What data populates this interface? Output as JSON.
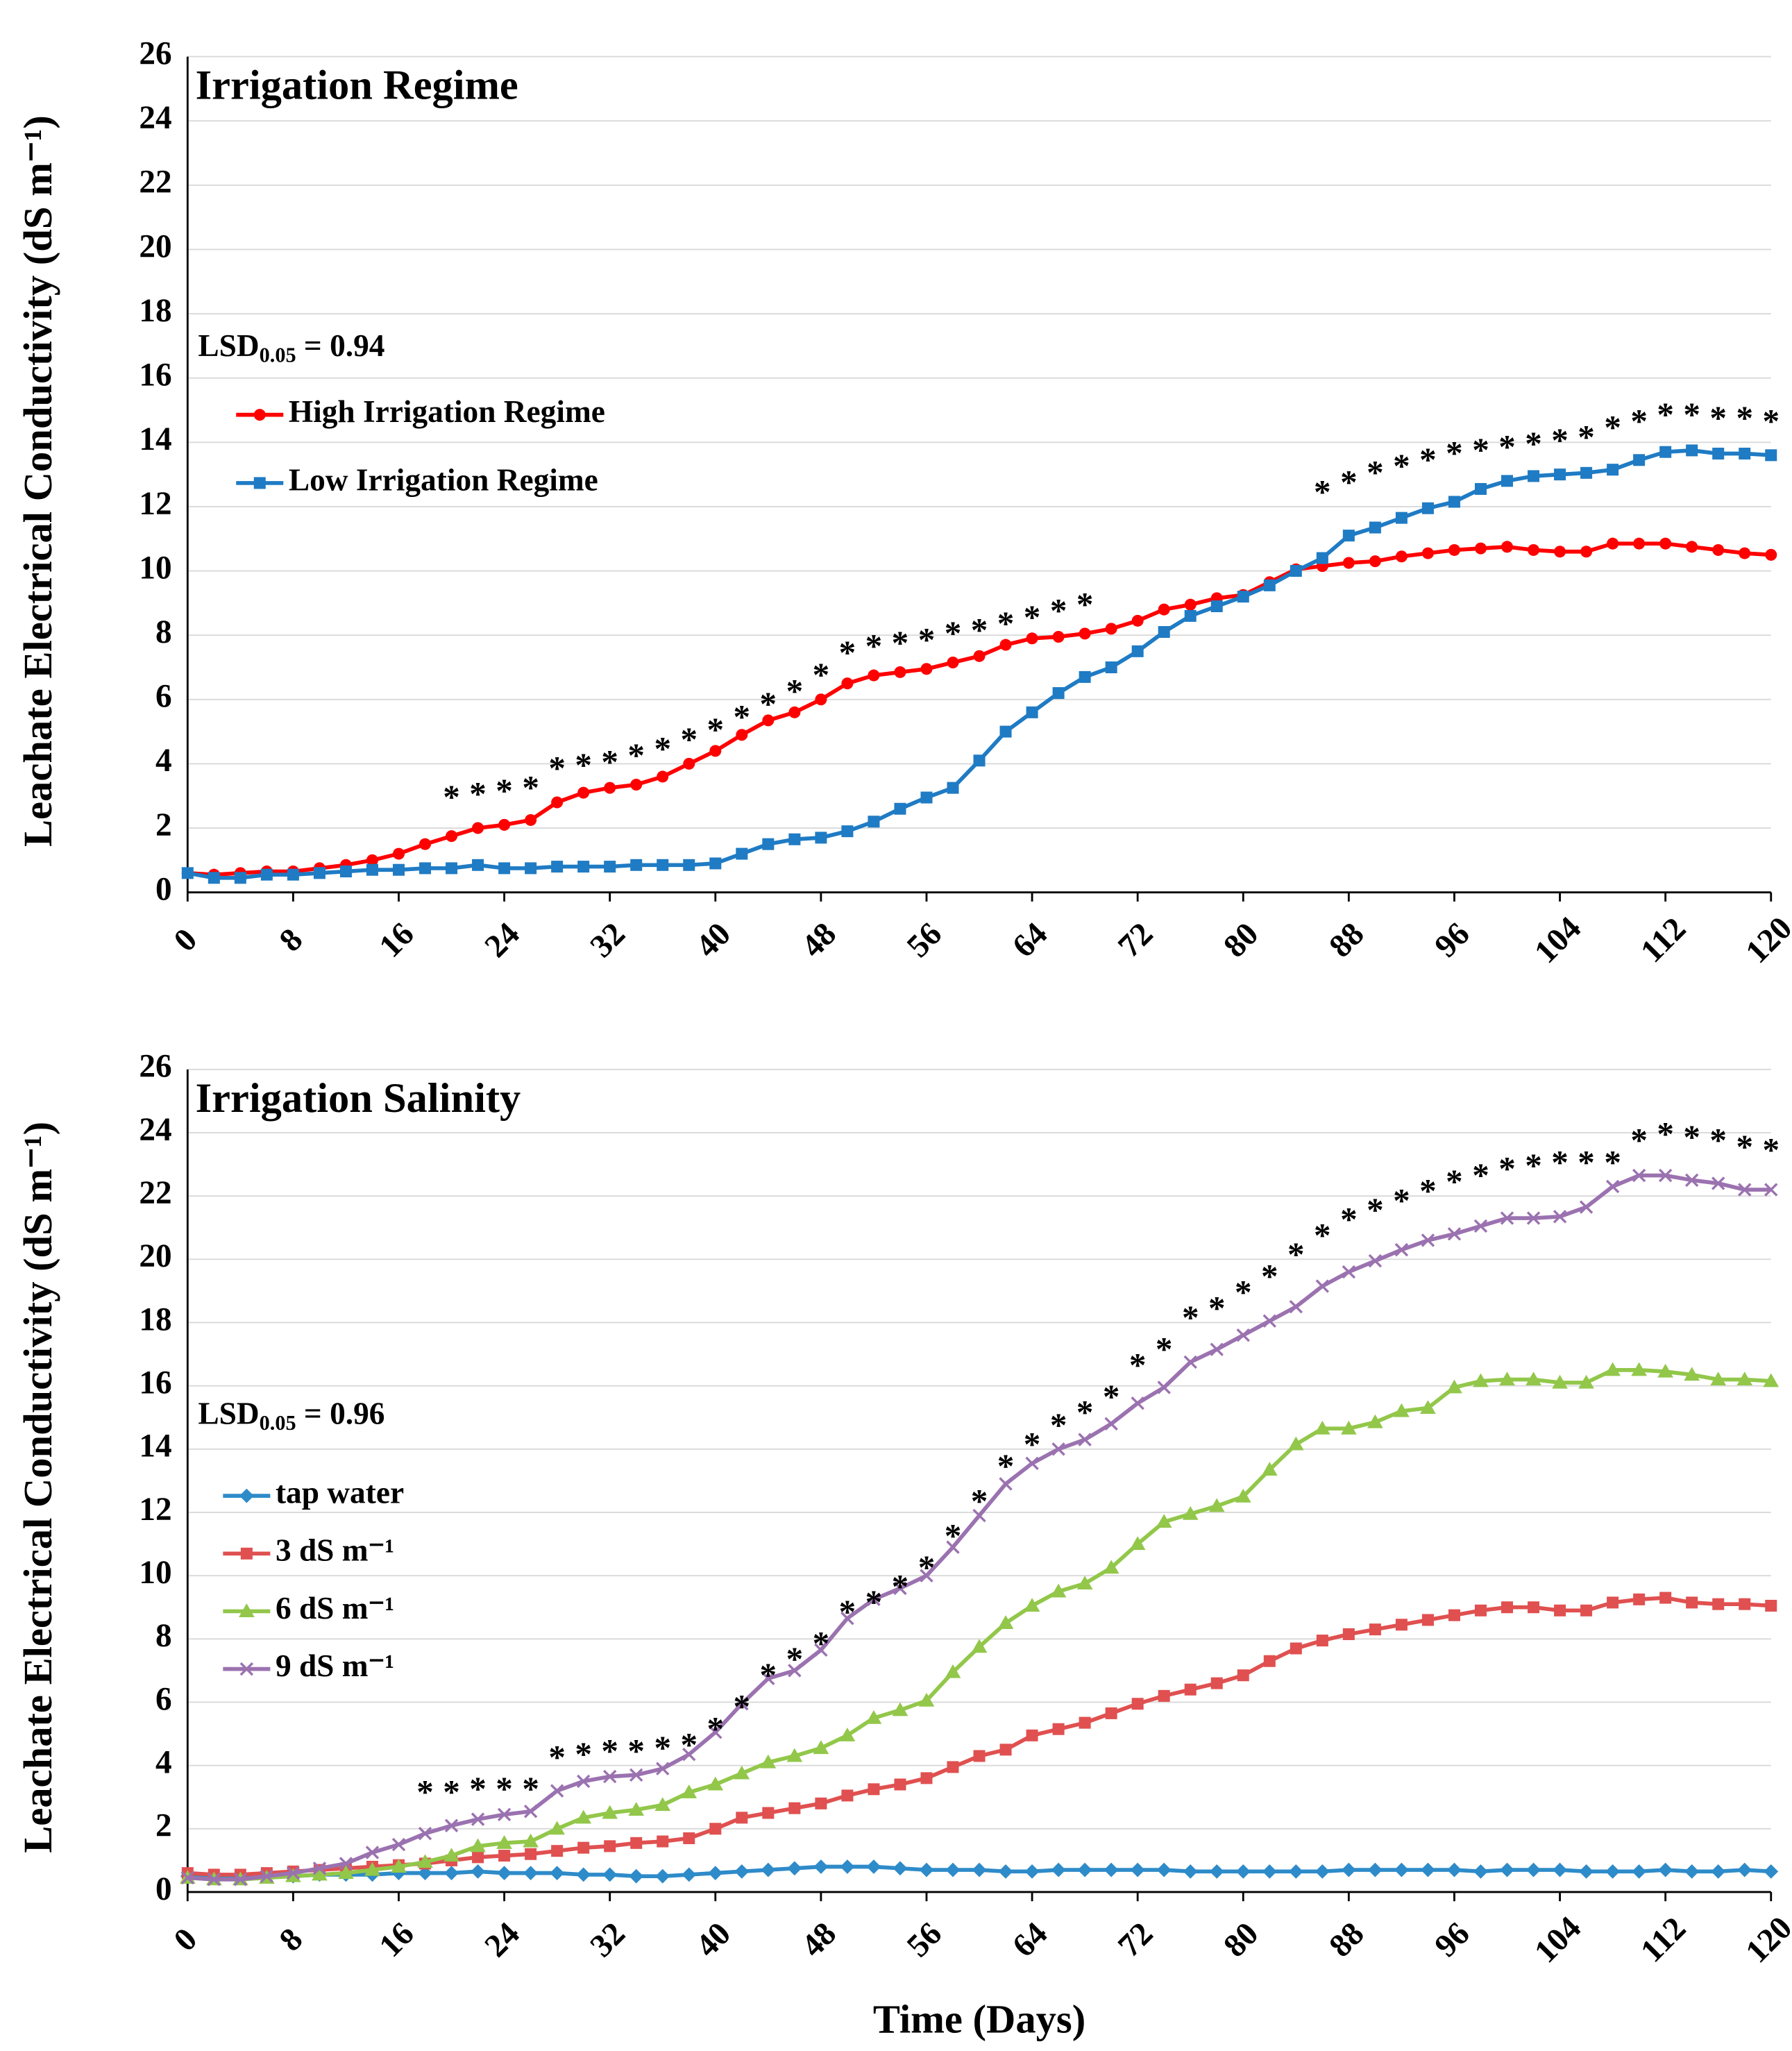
{
  "chart_data": [
    {
      "type": "line",
      "title": "Irrigation Regime",
      "y_label": "Leachate Electrical Conductivity (dS m⁻¹)",
      "annotation": {
        "text": "LSD",
        "subscript": "0.05",
        "rest": " = 0.94"
      },
      "x": [
        0,
        2,
        4,
        6,
        8,
        10,
        12,
        14,
        16,
        18,
        20,
        22,
        24,
        26,
        28,
        30,
        32,
        34,
        36,
        38,
        40,
        42,
        44,
        46,
        48,
        50,
        52,
        54,
        56,
        58,
        60,
        62,
        64,
        66,
        68,
        70,
        72,
        74,
        76,
        78,
        80,
        82,
        84,
        86,
        88,
        90,
        92,
        94,
        96,
        98,
        100,
        102,
        104,
        106,
        108,
        110,
        112,
        114,
        116,
        118,
        120
      ],
      "xlim": [
        0,
        120
      ],
      "xticks": [
        0,
        8,
        16,
        24,
        32,
        40,
        48,
        56,
        64,
        72,
        80,
        88,
        96,
        104,
        112,
        120
      ],
      "ylim": [
        0,
        26
      ],
      "yticks": [
        0,
        2,
        4,
        6,
        8,
        10,
        12,
        14,
        16,
        18,
        20,
        22,
        24,
        26
      ],
      "grid": true,
      "series": [
        {
          "name": "High Irrigation Regime",
          "color": "#ff0000",
          "marker": "circle",
          "values": [
            0.6,
            0.55,
            0.6,
            0.65,
            0.65,
            0.75,
            0.85,
            1.0,
            1.2,
            1.5,
            1.75,
            2.0,
            2.1,
            2.25,
            2.8,
            3.1,
            3.25,
            3.35,
            3.6,
            4.0,
            4.4,
            4.9,
            5.35,
            5.6,
            6.0,
            6.5,
            6.75,
            6.85,
            6.95,
            7.15,
            7.35,
            7.7,
            7.9,
            7.95,
            8.05,
            8.2,
            8.45,
            8.8,
            8.95,
            9.15,
            9.25,
            9.65,
            10.05,
            10.15,
            10.25,
            10.3,
            10.45,
            10.55,
            10.65,
            10.7,
            10.75,
            10.65,
            10.6,
            10.6,
            10.85,
            10.85,
            10.85,
            10.75,
            10.65,
            10.55,
            10.5
          ]
        },
        {
          "name": "Low Irrigation Regime",
          "color": "#1f7bc4",
          "marker": "square",
          "values": [
            0.6,
            0.45,
            0.45,
            0.55,
            0.55,
            0.6,
            0.65,
            0.7,
            0.7,
            0.75,
            0.75,
            0.85,
            0.75,
            0.75,
            0.8,
            0.8,
            0.8,
            0.85,
            0.85,
            0.85,
            0.9,
            1.2,
            1.5,
            1.65,
            1.7,
            1.9,
            2.2,
            2.6,
            2.95,
            3.25,
            4.1,
            5.0,
            5.6,
            6.2,
            6.7,
            7.0,
            7.5,
            8.1,
            8.6,
            8.9,
            9.2,
            9.55,
            10.0,
            10.4,
            11.1,
            11.35,
            11.65,
            11.95,
            12.15,
            12.55,
            12.8,
            12.95,
            13.0,
            13.05,
            13.15,
            13.45,
            13.7,
            13.75,
            13.65,
            13.65,
            13.6
          ]
        }
      ],
      "significance": {
        "label": "*",
        "x": [
          20,
          22,
          24,
          26,
          28,
          30,
          32,
          34,
          36,
          38,
          40,
          42,
          44,
          46,
          48,
          50,
          52,
          54,
          56,
          58,
          60,
          62,
          64,
          66,
          68,
          86,
          88,
          90,
          92,
          94,
          96,
          98,
          100,
          102,
          104,
          106,
          108,
          110,
          112,
          114,
          116,
          118,
          120
        ],
        "y": [
          3.1,
          3.2,
          3.3,
          3.4,
          4.0,
          4.1,
          4.2,
          4.4,
          4.6,
          4.9,
          5.2,
          5.6,
          6.0,
          6.4,
          6.9,
          7.6,
          7.8,
          7.9,
          8.0,
          8.2,
          8.3,
          8.5,
          8.7,
          8.9,
          9.1,
          12.6,
          12.9,
          13.2,
          13.4,
          13.6,
          13.8,
          13.9,
          14.0,
          14.1,
          14.2,
          14.3,
          14.6,
          14.8,
          15.0,
          15.0,
          14.9,
          14.9,
          14.8
        ]
      }
    },
    {
      "type": "line",
      "title": "Irrigation Salinity",
      "y_label": "Leachate Electrical Conductivity (dS m⁻¹)",
      "x_label": "Time (Days)",
      "annotation": {
        "text": "LSD",
        "subscript": "0.05",
        "rest": " = 0.96"
      },
      "x": [
        0,
        2,
        4,
        6,
        8,
        10,
        12,
        14,
        16,
        18,
        20,
        22,
        24,
        26,
        28,
        30,
        32,
        34,
        36,
        38,
        40,
        42,
        44,
        46,
        48,
        50,
        52,
        54,
        56,
        58,
        60,
        62,
        64,
        66,
        68,
        70,
        72,
        74,
        76,
        78,
        80,
        82,
        84,
        86,
        88,
        90,
        92,
        94,
        96,
        98,
        100,
        102,
        104,
        106,
        108,
        110,
        112,
        114,
        116,
        118,
        120
      ],
      "xlim": [
        0,
        120
      ],
      "xticks": [
        0,
        8,
        16,
        24,
        32,
        40,
        48,
        56,
        64,
        72,
        80,
        88,
        96,
        104,
        112,
        120
      ],
      "ylim": [
        0,
        26
      ],
      "yticks": [
        0,
        2,
        4,
        6,
        8,
        10,
        12,
        14,
        16,
        18,
        20,
        22,
        24,
        26
      ],
      "grid": true,
      "series": [
        {
          "name": "tap water",
          "color": "#2e8bc9",
          "marker": "diamond",
          "values": [
            0.5,
            0.45,
            0.45,
            0.5,
            0.5,
            0.55,
            0.55,
            0.55,
            0.6,
            0.6,
            0.6,
            0.65,
            0.6,
            0.6,
            0.6,
            0.55,
            0.55,
            0.5,
            0.5,
            0.55,
            0.6,
            0.65,
            0.7,
            0.75,
            0.8,
            0.8,
            0.8,
            0.75,
            0.7,
            0.7,
            0.7,
            0.65,
            0.65,
            0.7,
            0.7,
            0.7,
            0.7,
            0.7,
            0.65,
            0.65,
            0.65,
            0.65,
            0.65,
            0.65,
            0.7,
            0.7,
            0.7,
            0.7,
            0.7,
            0.65,
            0.7,
            0.7,
            0.7,
            0.65,
            0.65,
            0.65,
            0.7,
            0.65,
            0.65,
            0.7,
            0.65
          ]
        },
        {
          "name": "3 dS m⁻¹",
          "color": "#e05050",
          "marker": "square",
          "values": [
            0.6,
            0.55,
            0.55,
            0.6,
            0.65,
            0.7,
            0.75,
            0.8,
            0.85,
            0.9,
            1.0,
            1.1,
            1.15,
            1.2,
            1.3,
            1.4,
            1.45,
            1.55,
            1.6,
            1.7,
            2.0,
            2.35,
            2.5,
            2.65,
            2.8,
            3.05,
            3.25,
            3.4,
            3.6,
            3.95,
            4.3,
            4.5,
            4.95,
            5.15,
            5.35,
            5.65,
            5.95,
            6.2,
            6.4,
            6.6,
            6.85,
            7.3,
            7.7,
            7.95,
            8.15,
            8.3,
            8.45,
            8.6,
            8.75,
            8.9,
            9.0,
            9.0,
            8.9,
            8.9,
            9.15,
            9.25,
            9.3,
            9.15,
            9.1,
            9.1,
            9.05
          ]
        },
        {
          "name": "6 dS m⁻¹",
          "color": "#92c74a",
          "marker": "triangle",
          "values": [
            0.45,
            0.4,
            0.4,
            0.45,
            0.5,
            0.55,
            0.6,
            0.7,
            0.8,
            0.95,
            1.15,
            1.45,
            1.55,
            1.6,
            2.0,
            2.35,
            2.5,
            2.6,
            2.75,
            3.15,
            3.4,
            3.75,
            4.1,
            4.3,
            4.55,
            4.95,
            5.5,
            5.75,
            6.05,
            6.95,
            7.75,
            8.5,
            9.05,
            9.5,
            9.75,
            10.25,
            11.0,
            11.7,
            11.95,
            12.2,
            12.5,
            13.35,
            14.15,
            14.65,
            14.65,
            14.85,
            15.2,
            15.3,
            15.95,
            16.15,
            16.2,
            16.2,
            16.1,
            16.1,
            16.5,
            16.5,
            16.45,
            16.35,
            16.2,
            16.2,
            16.15
          ]
        },
        {
          "name": "9 dS m⁻¹",
          "color": "#9b72b0",
          "marker": "cross",
          "values": [
            0.45,
            0.4,
            0.4,
            0.5,
            0.6,
            0.75,
            0.9,
            1.25,
            1.5,
            1.85,
            2.1,
            2.3,
            2.45,
            2.55,
            3.2,
            3.5,
            3.65,
            3.7,
            3.9,
            4.35,
            5.05,
            5.95,
            6.75,
            7.0,
            7.65,
            8.65,
            9.25,
            9.6,
            10.0,
            10.9,
            11.9,
            12.9,
            13.55,
            14.0,
            14.3,
            14.8,
            15.45,
            15.95,
            16.75,
            17.15,
            17.6,
            18.05,
            18.5,
            19.15,
            19.6,
            19.95,
            20.3,
            20.6,
            20.8,
            21.05,
            21.3,
            21.3,
            21.35,
            21.65,
            22.3,
            22.65,
            22.65,
            22.5,
            22.4,
            22.2,
            22.2
          ]
        }
      ],
      "significance": {
        "label": "*",
        "x": [
          18,
          20,
          22,
          24,
          26,
          28,
          30,
          32,
          34,
          36,
          38,
          40,
          42,
          44,
          46,
          48,
          50,
          52,
          54,
          56,
          58,
          60,
          62,
          64,
          66,
          68,
          70,
          72,
          74,
          76,
          78,
          80,
          82,
          84,
          86,
          88,
          90,
          92,
          94,
          96,
          98,
          100,
          102,
          104,
          106,
          108,
          110,
          112,
          114,
          116,
          118,
          120
        ],
        "y": [
          3.3,
          3.3,
          3.4,
          3.4,
          3.4,
          4.4,
          4.5,
          4.6,
          4.6,
          4.7,
          4.8,
          5.3,
          6.0,
          7.0,
          7.5,
          8.0,
          9.0,
          9.3,
          9.8,
          10.4,
          11.4,
          12.5,
          13.6,
          14.3,
          14.9,
          15.3,
          15.8,
          16.8,
          17.3,
          18.3,
          18.6,
          19.1,
          19.6,
          20.3,
          20.9,
          21.4,
          21.7,
          22.0,
          22.3,
          22.6,
          22.8,
          23.0,
          23.1,
          23.2,
          23.2,
          23.2,
          23.9,
          24.1,
          24.0,
          23.9,
          23.7,
          23.6
        ]
      }
    }
  ]
}
